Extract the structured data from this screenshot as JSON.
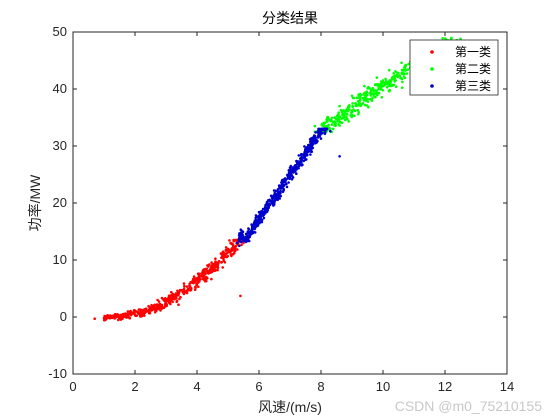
{
  "chart_data": {
    "type": "scatter",
    "title": "分类结果",
    "xlabel": "风速/(m/s)",
    "ylabel": "功率/MW",
    "xlim": [
      0,
      14
    ],
    "ylim": [
      -10,
      50
    ],
    "xticks": [
      0,
      2,
      4,
      6,
      8,
      10,
      12,
      14
    ],
    "yticks": [
      -10,
      0,
      10,
      20,
      30,
      40,
      50
    ],
    "grid": false,
    "legend_position": "top-right",
    "series": [
      {
        "name": "第一类",
        "color": "#ff0000",
        "x_range": [
          0.7,
          5.5
        ],
        "y_range": [
          -0.5,
          13.5
        ],
        "points": [
          [
            0.7,
            -0.3
          ],
          [
            1.0,
            -0.2
          ],
          [
            1.3,
            0.0
          ],
          [
            1.6,
            0.3
          ],
          [
            1.9,
            0.6
          ],
          [
            2.2,
            1.1
          ],
          [
            2.5,
            1.6
          ],
          [
            2.8,
            2.3
          ],
          [
            3.1,
            3.0
          ],
          [
            3.4,
            3.8
          ],
          [
            3.7,
            4.8
          ],
          [
            4.0,
            5.8
          ],
          [
            4.3,
            7.0
          ],
          [
            4.6,
            8.2
          ],
          [
            4.9,
            9.6
          ],
          [
            5.2,
            11.2
          ],
          [
            5.5,
            13.0
          ],
          [
            5.4,
            3.7
          ]
        ]
      },
      {
        "name": "第二类",
        "color": "#00ff00",
        "x_range": [
          7.8,
          12.5
        ],
        "y_range": [
          32.5,
          49
        ],
        "points": [
          [
            7.8,
            33.5
          ],
          [
            8.2,
            35.0
          ],
          [
            8.6,
            37.0
          ],
          [
            9.0,
            38.8
          ],
          [
            9.4,
            40.5
          ],
          [
            9.8,
            42.0
          ],
          [
            10.2,
            43.3
          ],
          [
            10.6,
            44.6
          ],
          [
            11.0,
            45.6
          ],
          [
            11.4,
            46.6
          ],
          [
            11.8,
            47.5
          ],
          [
            12.2,
            48.3
          ],
          [
            12.5,
            48.8
          ]
        ]
      },
      {
        "name": "第三类",
        "color": "#0000cc",
        "x_range": [
          5.3,
          8.6
        ],
        "y_range": [
          12.5,
          33
        ],
        "points": [
          [
            5.3,
            13.0
          ],
          [
            5.6,
            14.6
          ],
          [
            5.9,
            16.3
          ],
          [
            6.2,
            18.2
          ],
          [
            6.5,
            20.2
          ],
          [
            6.8,
            22.3
          ],
          [
            7.1,
            24.5
          ],
          [
            7.4,
            26.7
          ],
          [
            7.7,
            29.0
          ],
          [
            8.0,
            31.3
          ],
          [
            8.3,
            32.6
          ],
          [
            8.6,
            28.2
          ]
        ]
      }
    ]
  },
  "watermark": "CSDN @m0_75210155"
}
